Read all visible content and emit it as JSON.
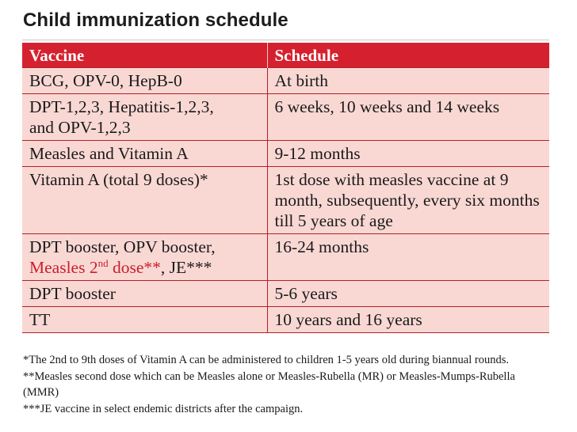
{
  "title": "Child immunization schedule",
  "table": {
    "headers": [
      "Vaccine",
      "Schedule"
    ],
    "rows": [
      {
        "vaccine": "BCG, OPV-0, HepB-0",
        "schedule": "At birth"
      },
      {
        "vaccine_line1": "DPT-1,2,3, Hepatitis-1,2,3,",
        "vaccine_line2": "and OPV-1,2,3",
        "schedule": "6 weeks, 10 weeks and 14 weeks"
      },
      {
        "vaccine": "Measles and Vitamin A",
        "schedule": "9-12 months"
      },
      {
        "vaccine": "Vitamin A (total 9 doses)*",
        "schedule": "1st dose with measles vaccine at 9 month, subsequently, every six months till 5 years of age"
      },
      {
        "vaccine_line1": "DPT booster, OPV booster,",
        "vaccine_red": "Measles 2",
        "vaccine_sup": "nd",
        "vaccine_red2": " dose**",
        "vaccine_tail": ", JE***",
        "schedule": "16-24 months"
      },
      {
        "vaccine": "DPT booster",
        "schedule": "5-6 years"
      },
      {
        "vaccine": "TT",
        "schedule": "10 years and 16 years"
      }
    ]
  },
  "notes": [
    "*The 2nd to 9th doses of Vitamin A can be administered to children 1-5 years old during biannual rounds.",
    "**Measles second dose which can be Measles alone or Measles-Rubella (MR) or Measles-Mumps-Rubella (MMR)",
    "***JE vaccine in select endemic districts after the campaign."
  ],
  "colors": {
    "header_bg": "#d5212f",
    "row_bg": "#f9d8d4",
    "highlight_text": "#c8202a"
  }
}
